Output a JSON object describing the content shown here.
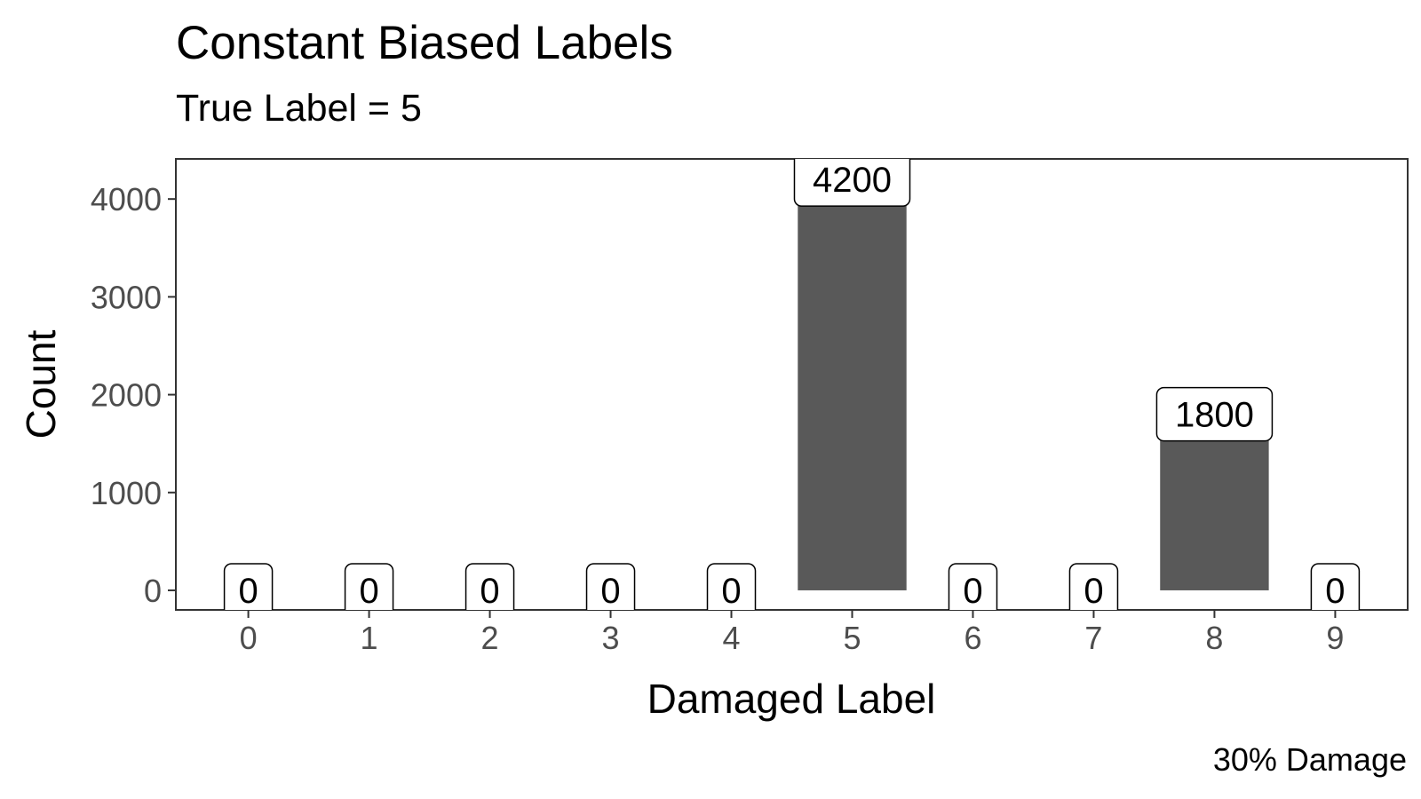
{
  "chart_data": {
    "type": "bar",
    "title": "Constant Biased Labels",
    "subtitle": "True Label = 5",
    "caption": "30% Damage",
    "xlabel": "Damaged Label",
    "ylabel": "Count",
    "categories": [
      "0",
      "1",
      "2",
      "3",
      "4",
      "5",
      "6",
      "7",
      "8",
      "9"
    ],
    "values": [
      0,
      0,
      0,
      0,
      0,
      4200,
      0,
      0,
      1800,
      0
    ],
    "data_labels": [
      "0",
      "0",
      "0",
      "0",
      "0",
      "4200",
      "0",
      "0",
      "1800",
      "0"
    ],
    "yticks": [
      0,
      1000,
      2000,
      3000,
      4000
    ],
    "ytick_labels": [
      "0",
      "1000",
      "2000",
      "3000",
      "4000"
    ],
    "ylim": [
      -200,
      4410
    ],
    "grid": false,
    "legend": "none",
    "colors": {
      "bar": "#595959",
      "panel_border": "#333333",
      "tick_text": "#4d4d4d",
      "label_fill": "#ffffff"
    }
  }
}
